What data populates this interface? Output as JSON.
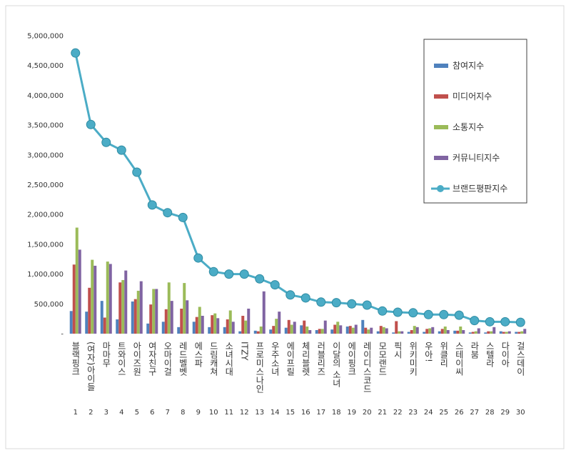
{
  "chart_data": {
    "type": "bar",
    "categories": [
      "블랙핑크",
      "(여자)아이들",
      "마마무",
      "트와이스",
      "아이즈원",
      "여자친구",
      "오마이걸",
      "레드벨벳",
      "에스파",
      "드림캐쳐",
      "소녀시대",
      "ITZY",
      "프로미스나인",
      "우주소녀",
      "에이프릴",
      "체리블렛",
      "러블리즈",
      "이달의 소녀",
      "에이핑크",
      "레이디스코드",
      "모모랜드",
      "픽시",
      "위키미키",
      "우아!",
      "위클리",
      "스테이씨",
      "라붐",
      "스텔라",
      "다이아",
      "걸스데이"
    ],
    "ranks": [
      1,
      2,
      3,
      4,
      5,
      6,
      7,
      8,
      9,
      10,
      11,
      12,
      13,
      14,
      15,
      16,
      17,
      18,
      19,
      20,
      21,
      22,
      23,
      24,
      25,
      26,
      27,
      28,
      29,
      30
    ],
    "ylim": [
      0,
      5000000
    ],
    "yticks": [
      {
        "value": 0,
        "label": "-"
      },
      {
        "value": 500000,
        "label": "500,000"
      },
      {
        "value": 1000000,
        "label": "1,000,000"
      },
      {
        "value": 1500000,
        "label": "1,500,000"
      },
      {
        "value": 2000000,
        "label": "2,000,000"
      },
      {
        "value": 2500000,
        "label": "2,500,000"
      },
      {
        "value": 3000000,
        "label": "3,000,000"
      },
      {
        "value": 3500000,
        "label": "3,500,000"
      },
      {
        "value": 4000000,
        "label": "4,000,000"
      },
      {
        "value": 4500000,
        "label": "4,500,000"
      },
      {
        "value": 5000000,
        "label": "5,000,000"
      }
    ],
    "legend": "upper right",
    "series": [
      {
        "name": "참여지수",
        "type": "bar",
        "color": "#4f81bd",
        "values": [
          380000,
          370000,
          550000,
          240000,
          540000,
          170000,
          200000,
          110000,
          200000,
          110000,
          110000,
          40000,
          50000,
          70000,
          100000,
          140000,
          60000,
          70000,
          120000,
          230000,
          40000,
          20000,
          30000,
          30000,
          40000,
          50000,
          20000,
          20000,
          40000,
          30000
        ]
      },
      {
        "name": "미디어지수",
        "type": "bar",
        "color": "#c0504d",
        "values": [
          1160000,
          770000,
          270000,
          860000,
          580000,
          490000,
          410000,
          420000,
          280000,
          310000,
          240000,
          300000,
          40000,
          130000,
          230000,
          220000,
          80000,
          150000,
          130000,
          100000,
          130000,
          210000,
          60000,
          80000,
          80000,
          50000,
          30000,
          40000,
          30000,
          30000
        ]
      },
      {
        "name": "소통지수",
        "type": "bar",
        "color": "#9bbb59",
        "values": [
          1780000,
          1240000,
          1210000,
          900000,
          720000,
          750000,
          860000,
          850000,
          450000,
          340000,
          390000,
          220000,
          120000,
          250000,
          150000,
          120000,
          80000,
          200000,
          100000,
          70000,
          110000,
          40000,
          130000,
          90000,
          120000,
          120000,
          40000,
          40000,
          30000,
          40000
        ]
      },
      {
        "name": "커뮤니티지수",
        "type": "bar",
        "color": "#8064a2",
        "values": [
          1410000,
          1140000,
          1170000,
          1060000,
          880000,
          750000,
          550000,
          560000,
          300000,
          260000,
          200000,
          420000,
          710000,
          370000,
          200000,
          60000,
          220000,
          140000,
          150000,
          100000,
          90000,
          40000,
          110000,
          110000,
          60000,
          60000,
          90000,
          110000,
          40000,
          80000
        ]
      },
      {
        "name": "브랜드평판지수",
        "type": "line",
        "color": "#4bacc6",
        "values": [
          4710000,
          3510000,
          3210000,
          3080000,
          2710000,
          2160000,
          2030000,
          1950000,
          1270000,
          1040000,
          1000000,
          1000000,
          920000,
          820000,
          650000,
          600000,
          530000,
          520000,
          500000,
          480000,
          380000,
          360000,
          350000,
          320000,
          320000,
          310000,
          220000,
          200000,
          200000,
          190000
        ]
      }
    ]
  }
}
